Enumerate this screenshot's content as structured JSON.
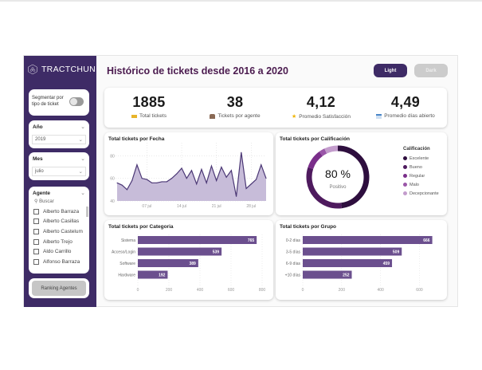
{
  "app": {
    "brand": "TRACTCHUN",
    "title": "Histórico de tickets desde 2016 a 2020",
    "theme_buttons": {
      "light": "Light",
      "dark": "Dark"
    }
  },
  "colors": {
    "sidebar": "#3e2b66",
    "accent": "#6b4f8e",
    "title": "#4b1b4f"
  },
  "sidebar": {
    "segment": {
      "label": "Segmentar por tipo de ticket",
      "toggle_on": false
    },
    "filters": [
      {
        "label": "Año",
        "value": "2019"
      },
      {
        "label": "Mes",
        "value": "julio"
      }
    ],
    "agent_filter": {
      "label": "Agente",
      "search_placeholder": "Buscar",
      "items": [
        "Alberto Barraza",
        "Alberto Casillas",
        "Alberto Castelum",
        "Alberto Trejo",
        "Aldo Carrillo",
        "Alfonso Barraza"
      ]
    },
    "ranking_button": "Ranking Agentes"
  },
  "kpis": [
    {
      "value": "1885",
      "label": "Total tickets",
      "icon": "ticket-icon"
    },
    {
      "value": "38",
      "label": "Tickets por agente",
      "icon": "agent-icon"
    },
    {
      "value": "4,12",
      "label": "Promedio Satisfacción",
      "icon": "star-icon"
    },
    {
      "value": "4,49",
      "label": "Promedio días abierto",
      "icon": "calendar-icon"
    }
  ],
  "chart_data": [
    {
      "type": "area",
      "title": "Total tickets por Fecha",
      "xlabel": "",
      "ylabel": "",
      "ylim": [
        40,
        88
      ],
      "yticks": [
        40,
        60,
        80
      ],
      "xticks": [
        {
          "day": 7,
          "label": "07 jul"
        },
        {
          "day": 14,
          "label": "14 jul"
        },
        {
          "day": 21,
          "label": "21 jul"
        },
        {
          "day": 28,
          "label": "28 jul"
        }
      ],
      "x": [
        1,
        2,
        3,
        4,
        5,
        6,
        7,
        8,
        9,
        10,
        11,
        12,
        13,
        14,
        15,
        16,
        17,
        18,
        19,
        20,
        21,
        22,
        23,
        24,
        25,
        26,
        27,
        28,
        29,
        30,
        31
      ],
      "values": [
        56,
        54,
        50,
        58,
        72,
        60,
        59,
        56,
        56,
        57,
        57,
        60,
        64,
        69,
        60,
        67,
        55,
        68,
        56,
        71,
        58,
        70,
        61,
        67,
        44,
        83,
        51,
        55,
        59,
        72,
        60
      ]
    },
    {
      "type": "pie",
      "title": "Total tickets por Calificación",
      "center_value": "80 %",
      "center_label": "Positivo",
      "legend_title": "Calificación",
      "categories": [
        "Excelente",
        "Bueno",
        "Regular",
        "Malo",
        "Decepcionante"
      ],
      "values": [
        48,
        32,
        10,
        3,
        7
      ],
      "colors": [
        "#2e0e3e",
        "#4e1a5e",
        "#7a2e8a",
        "#9a56a8",
        "#c39ccc"
      ]
    },
    {
      "type": "bar",
      "title": "Total tickets por Categoria",
      "categories": [
        "Sistema",
        "Acceso/Login",
        "Software",
        "Hardware"
      ],
      "values": [
        765,
        539,
        389,
        192
      ],
      "xlim": [
        0,
        800
      ],
      "xticks": [
        0,
        200,
        400,
        600,
        800
      ]
    },
    {
      "type": "bar",
      "title": "Total tickets por Grupo",
      "categories": [
        "0-2 días",
        "3-5 días",
        "6-9 días",
        "+10 días"
      ],
      "values": [
        666,
        509,
        459,
        252
      ],
      "xlim": [
        0,
        680
      ],
      "xticks": [
        0,
        200,
        400,
        600
      ]
    }
  ]
}
